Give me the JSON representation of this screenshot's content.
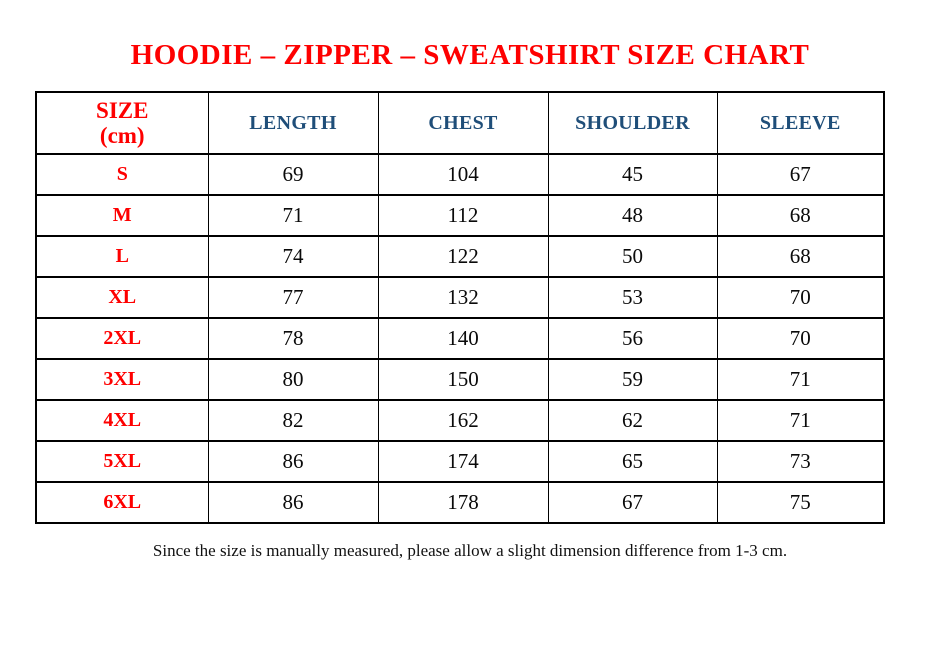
{
  "page": {
    "stray_dot": ".",
    "title": "HOODIE – ZIPPER – SWEATSHIRT SIZE CHART",
    "footer_note": "Since the size is manually measured, please allow a slight dimension difference from 1-3 cm."
  },
  "colors": {
    "title_red": "#fe0000",
    "header_blue": "#1f4e79",
    "size_label_red": "#fe0000",
    "value_black": "#0a0a0a",
    "border_black": "#000000",
    "background": "#ffffff"
  },
  "table_header": {
    "size_line1": "SIZE",
    "size_line2": "(cm)",
    "length": "LENGTH",
    "chest": "CHEST",
    "shoulder": "SHOULDER",
    "sleeve": "SLEEVE"
  },
  "chart_data": {
    "type": "table",
    "title": "HOODIE – ZIPPER – SWEATSHIRT SIZE CHART",
    "unit": "cm",
    "columns": [
      "SIZE (cm)",
      "LENGTH",
      "CHEST",
      "SHOULDER",
      "SLEEVE"
    ],
    "rows": [
      {
        "size": "S",
        "values": [
          69,
          104,
          45,
          67
        ]
      },
      {
        "size": "M",
        "values": [
          71,
          112,
          48,
          68
        ]
      },
      {
        "size": "L",
        "values": [
          74,
          122,
          50,
          68
        ]
      },
      {
        "size": "XL",
        "values": [
          77,
          132,
          53,
          70
        ]
      },
      {
        "size": "2XL",
        "values": [
          78,
          140,
          56,
          70
        ]
      },
      {
        "size": "3XL",
        "values": [
          80,
          150,
          59,
          71
        ]
      },
      {
        "size": "4XL",
        "values": [
          82,
          162,
          62,
          71
        ]
      },
      {
        "size": "5XL",
        "values": [
          86,
          174,
          65,
          73
        ]
      },
      {
        "size": "6XL",
        "values": [
          86,
          178,
          67,
          75
        ]
      }
    ],
    "footnote": "Since the size is manually measured, please allow a slight dimension difference from 1-3 cm."
  }
}
